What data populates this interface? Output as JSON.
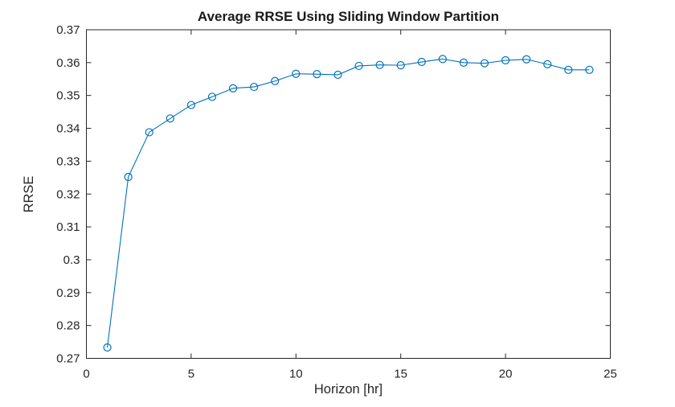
{
  "window": {
    "background": "#ffffff"
  },
  "chart_data": {
    "type": "line",
    "title": "Average RRSE Using Sliding Window Partition",
    "xlabel": "Horizon [hr]",
    "ylabel": "RRSE",
    "xlim": [
      0,
      25
    ],
    "ylim": [
      0.27,
      0.37
    ],
    "xticks": [
      0,
      5,
      10,
      15,
      20,
      25
    ],
    "xtick_labels": [
      "0",
      "5",
      "10",
      "15",
      "20",
      "25"
    ],
    "yticks": [
      0.27,
      0.28,
      0.29,
      0.3,
      0.31,
      0.32,
      0.33,
      0.34,
      0.35,
      0.36,
      0.37
    ],
    "ytick_labels": [
      "0.27",
      "0.28",
      "0.29",
      "0.3",
      "0.31",
      "0.32",
      "0.33",
      "0.34",
      "0.35",
      "0.36",
      "0.37"
    ],
    "grid": false,
    "box": true,
    "tick_direction": "in",
    "legend_position": "none",
    "marker": "open-circle",
    "line_color": "#0072BD",
    "axis_color": "#262626",
    "title_color": "#1a1a1a",
    "series": [
      {
        "name": "Average RRSE",
        "x": [
          1,
          2,
          3,
          4,
          5,
          6,
          7,
          8,
          9,
          10,
          11,
          12,
          13,
          14,
          15,
          16,
          17,
          18,
          19,
          20,
          21,
          22,
          23,
          24
        ],
        "y": [
          0.2733,
          0.3252,
          0.3388,
          0.343,
          0.3471,
          0.3496,
          0.3522,
          0.3526,
          0.3544,
          0.3566,
          0.3565,
          0.3563,
          0.359,
          0.3593,
          0.3592,
          0.3602,
          0.3611,
          0.36,
          0.3598,
          0.3607,
          0.361,
          0.3595,
          0.3578,
          0.3578
        ]
      }
    ]
  }
}
